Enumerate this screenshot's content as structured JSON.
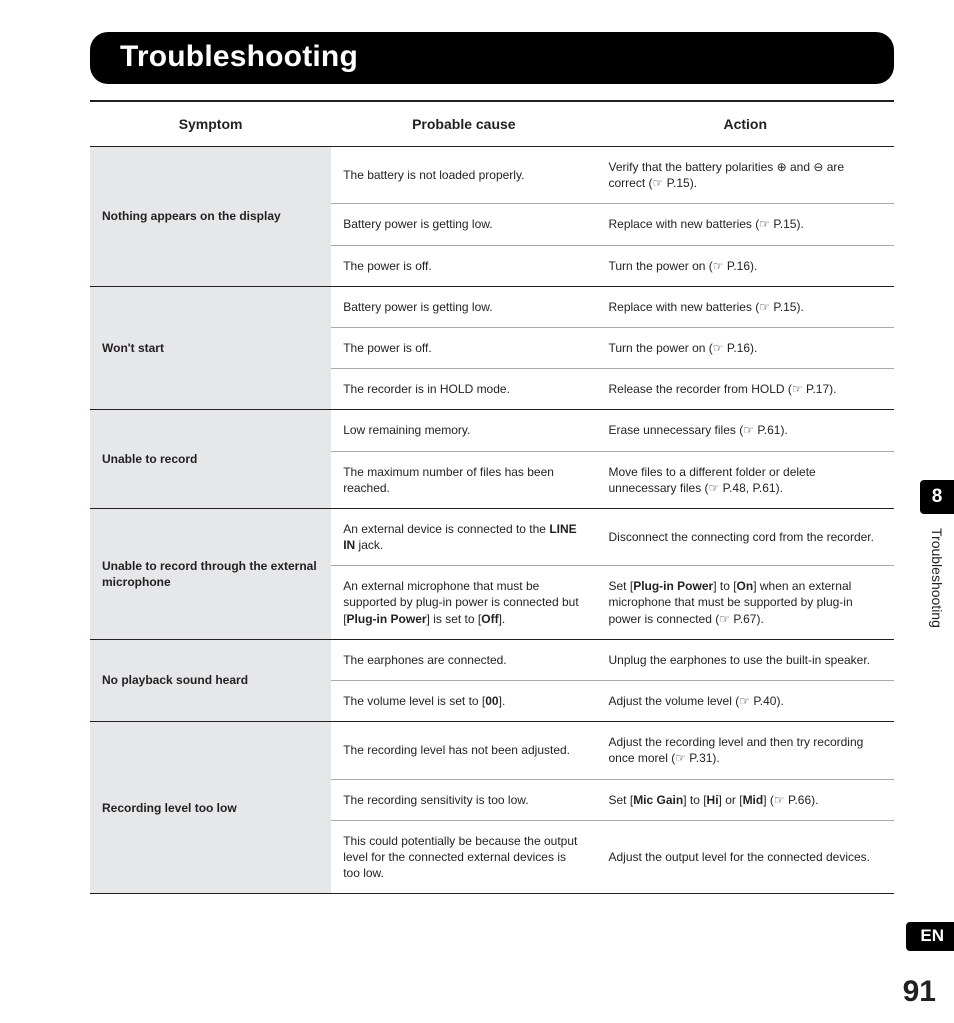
{
  "title": "Troubleshooting",
  "chapter_number": "8",
  "side_label": "Troubleshooting",
  "lang": "EN",
  "page_number": "91",
  "columns": {
    "symptom": "Symptom",
    "cause": "Probable cause",
    "action": "Action"
  },
  "groups": [
    {
      "symptom": "Nothing appears on the display",
      "rows": [
        {
          "cause": "The battery is not loaded properly.",
          "action": "Verify that the battery polarities ⊕ and ⊖ are correct (☞ P.15)."
        },
        {
          "cause": "Battery power is getting low.",
          "action": "Replace with new batteries (☞ P.15)."
        },
        {
          "cause": "The power is off.",
          "action": "Turn the power on (☞ P.16)."
        }
      ]
    },
    {
      "symptom": "Won't start",
      "rows": [
        {
          "cause": "Battery power is getting low.",
          "action": "Replace with new batteries (☞ P.15)."
        },
        {
          "cause": "The power is off.",
          "action": "Turn the power on (☞ P.16)."
        },
        {
          "cause": "The recorder is in HOLD mode.",
          "action": "Release the recorder from HOLD (☞ P.17)."
        }
      ]
    },
    {
      "symptom": "Unable to record",
      "rows": [
        {
          "cause": "Low remaining memory.",
          "action": "Erase unnecessary files (☞ P.61)."
        },
        {
          "cause": "The maximum number of files has been reached.",
          "action": "Move files to a different folder or delete unnecessary files (☞ P.48, P.61)."
        }
      ]
    },
    {
      "symptom": "Unable to record through the external microphone",
      "rows": [
        {
          "cause_html": "An external device is connected to the <span class='b'>LINE IN</span> jack.",
          "action": "Disconnect the connecting cord from the recorder."
        },
        {
          "cause_html": "An external microphone that must be supported by plug-in power is connected but [<span class='b'>Plug-in Power</span>] is set to [<span class='b'>Off</span>].",
          "action_html": "Set [<span class='b'>Plug-in Power</span>] to [<span class='b'>On</span>] when an external microphone that must be supported by plug-in power is connected (☞ P.67)."
        }
      ]
    },
    {
      "symptom": "No playback sound heard",
      "rows": [
        {
          "cause": "The earphones are connected.",
          "action": "Unplug the earphones to use the built-in speaker."
        },
        {
          "cause_html": "The volume level is set to [<span class='b'>00</span>].",
          "action": "Adjust the volume level (☞ P.40)."
        }
      ]
    },
    {
      "symptom": "Recording level too low",
      "rows": [
        {
          "cause": "The recording level has not been adjusted.",
          "action": "Adjust the recording level and then try recording once morel (☞ P.31)."
        },
        {
          "cause": "The recording sensitivity is too low.",
          "action_html": "Set [<span class='b'>Mic Gain</span>] to [<span class='b'>Hi</span>] or [<span class='b'>Mid</span>] (☞ P.66)."
        },
        {
          "cause": "This could potentially be because the output level for the connected external devices is too low.",
          "action": "Adjust the output level for the connected devices."
        }
      ]
    }
  ]
}
